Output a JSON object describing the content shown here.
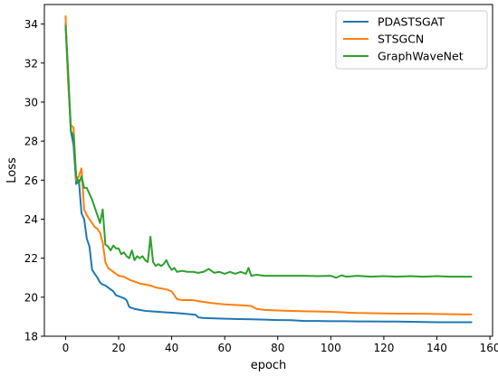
{
  "chart_data": {
    "type": "line",
    "title": "",
    "xlabel": "epoch",
    "ylabel": "Loss",
    "xlim": [
      -8,
      161
    ],
    "ylim": [
      18.0,
      35.0
    ],
    "xticks": [
      0,
      20,
      40,
      60,
      80,
      100,
      120,
      140,
      160
    ],
    "yticks": [
      18,
      20,
      22,
      24,
      26,
      28,
      30,
      32,
      34
    ],
    "grid": false,
    "legend_position": "top-right",
    "series": [
      {
        "name": "PDASTSGAT",
        "color": "#1f77b4",
        "x": [
          0,
          1,
          2,
          3,
          4,
          5,
          6,
          7,
          8,
          9,
          10,
          11,
          12,
          13,
          14,
          15,
          16,
          17,
          18,
          19,
          20,
          21,
          22,
          23,
          24,
          25,
          26,
          28,
          30,
          32,
          35,
          38,
          41,
          45,
          49,
          50,
          52,
          55,
          60,
          65,
          70,
          75,
          80,
          85,
          88,
          90,
          95,
          100,
          105,
          110,
          115,
          120,
          125,
          130,
          135,
          140,
          145,
          150,
          153
        ],
        "y": [
          34.0,
          31.0,
          28.5,
          27.8,
          25.8,
          26.0,
          24.3,
          24.0,
          23.0,
          22.6,
          21.4,
          21.2,
          21.0,
          20.75,
          20.65,
          20.6,
          20.5,
          20.4,
          20.3,
          20.1,
          20.05,
          20.0,
          19.95,
          19.85,
          19.5,
          19.45,
          19.4,
          19.35,
          19.3,
          19.28,
          19.25,
          19.22,
          19.2,
          19.15,
          19.1,
          18.97,
          18.93,
          18.92,
          18.9,
          18.88,
          18.87,
          18.85,
          18.83,
          18.82,
          18.8,
          18.78,
          18.78,
          18.77,
          18.77,
          18.76,
          18.76,
          18.75,
          18.75,
          18.74,
          18.73,
          18.72,
          18.72,
          18.72,
          18.72
        ]
      },
      {
        "name": "STSGCN",
        "color": "#ff7f0e",
        "x": [
          0,
          1,
          2,
          3,
          4,
          5,
          6,
          7,
          8,
          9,
          10,
          11,
          12,
          13,
          14,
          15,
          16,
          17,
          18,
          19,
          20,
          22,
          24,
          26,
          28,
          30,
          32,
          34,
          36,
          38,
          40,
          42,
          44,
          46,
          48,
          50,
          55,
          60,
          65,
          70,
          72,
          75,
          80,
          85,
          90,
          95,
          100,
          105,
          108,
          110,
          115,
          120,
          125,
          130,
          135,
          140,
          145,
          150,
          153
        ],
        "y": [
          34.4,
          31.0,
          28.8,
          28.7,
          26.0,
          26.2,
          26.6,
          24.5,
          24.2,
          24.0,
          23.8,
          23.6,
          23.5,
          23.3,
          22.8,
          21.8,
          21.5,
          21.4,
          21.3,
          21.2,
          21.1,
          21.05,
          20.9,
          20.8,
          20.7,
          20.65,
          20.6,
          20.5,
          20.45,
          20.4,
          20.3,
          19.9,
          19.85,
          19.85,
          19.85,
          19.8,
          19.7,
          19.63,
          19.6,
          19.55,
          19.4,
          19.35,
          19.32,
          19.3,
          19.28,
          19.27,
          19.25,
          19.22,
          19.2,
          19.19,
          19.18,
          19.17,
          19.16,
          19.16,
          19.15,
          19.14,
          19.13,
          19.12,
          19.12
        ]
      },
      {
        "name": "GraphWaveNet",
        "color": "#2ca02c",
        "x": [
          0,
          1,
          2,
          3,
          4,
          5,
          6,
          7,
          8,
          9,
          10,
          11,
          12,
          13,
          14,
          15,
          16,
          17,
          18,
          19,
          20,
          21,
          22,
          23,
          24,
          25,
          26,
          27,
          28,
          29,
          30,
          31,
          32,
          33,
          34,
          35,
          36,
          37,
          38,
          39,
          40,
          41,
          42,
          44,
          46,
          48,
          50,
          52,
          54,
          56,
          58,
          60,
          62,
          64,
          66,
          68,
          69,
          70,
          72,
          75,
          80,
          85,
          90,
          95,
          100,
          102,
          104,
          106,
          110,
          115,
          120,
          125,
          130,
          135,
          140,
          145,
          150,
          153
        ],
        "y": [
          33.9,
          31.5,
          28.5,
          28.3,
          26.2,
          25.8,
          26.2,
          25.6,
          25.6,
          25.3,
          25.0,
          24.6,
          24.2,
          23.8,
          24.5,
          22.7,
          22.6,
          22.4,
          22.65,
          22.5,
          22.5,
          22.2,
          22.3,
          22.1,
          22.0,
          22.4,
          21.9,
          22.1,
          22.0,
          22.1,
          21.9,
          21.8,
          23.1,
          21.8,
          21.6,
          21.7,
          21.6,
          21.7,
          21.9,
          21.6,
          21.4,
          21.5,
          21.3,
          21.35,
          21.3,
          21.3,
          21.25,
          21.3,
          21.45,
          21.25,
          21.3,
          21.2,
          21.3,
          21.2,
          21.3,
          21.2,
          21.5,
          21.1,
          21.15,
          21.1,
          21.1,
          21.1,
          21.1,
          21.08,
          21.1,
          21.0,
          21.12,
          21.05,
          21.1,
          21.05,
          21.08,
          21.05,
          21.08,
          21.05,
          21.08,
          21.05,
          21.05,
          21.05
        ]
      }
    ]
  }
}
